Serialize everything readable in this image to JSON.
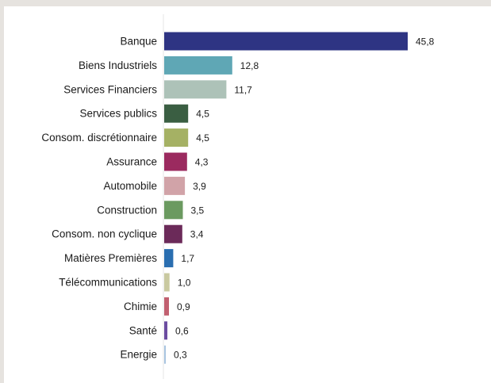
{
  "chart_data": {
    "type": "bar",
    "orientation": "horizontal",
    "title": "",
    "xlabel": "",
    "ylabel": "",
    "decimal_separator": ",",
    "xlim": [
      0,
      45.8
    ],
    "grid": false,
    "legend": "none",
    "categories": [
      "Banque",
      "Biens Industriels",
      "Services Financiers",
      "Services publics",
      "Consom. discrétionnaire",
      "Assurance",
      "Automobile",
      "Construction",
      "Consom. non cyclique",
      "Matières Premières",
      "Télécommunications",
      "Chimie",
      "Santé",
      "Energie"
    ],
    "values": [
      45.8,
      12.8,
      11.7,
      4.5,
      4.5,
      4.3,
      3.9,
      3.5,
      3.4,
      1.7,
      1.0,
      0.9,
      0.6,
      0.3
    ],
    "value_labels": [
      "45,8",
      "12,8",
      "11,7",
      "4,5",
      "4,5",
      "4,3",
      "3,9",
      "3,5",
      "3,4",
      "1,7",
      "1,0",
      "0,9",
      "0,6",
      "0,3"
    ],
    "colors": [
      "#2e3483",
      "#5fa7b5",
      "#adc2b8",
      "#3a5e42",
      "#a5b164",
      "#9b2a5f",
      "#d1a3a8",
      "#6b9a60",
      "#6b2a59",
      "#2a6eb0",
      "#c9c9a0",
      "#c16070",
      "#6b4ca0",
      "#a8c4e0"
    ]
  }
}
